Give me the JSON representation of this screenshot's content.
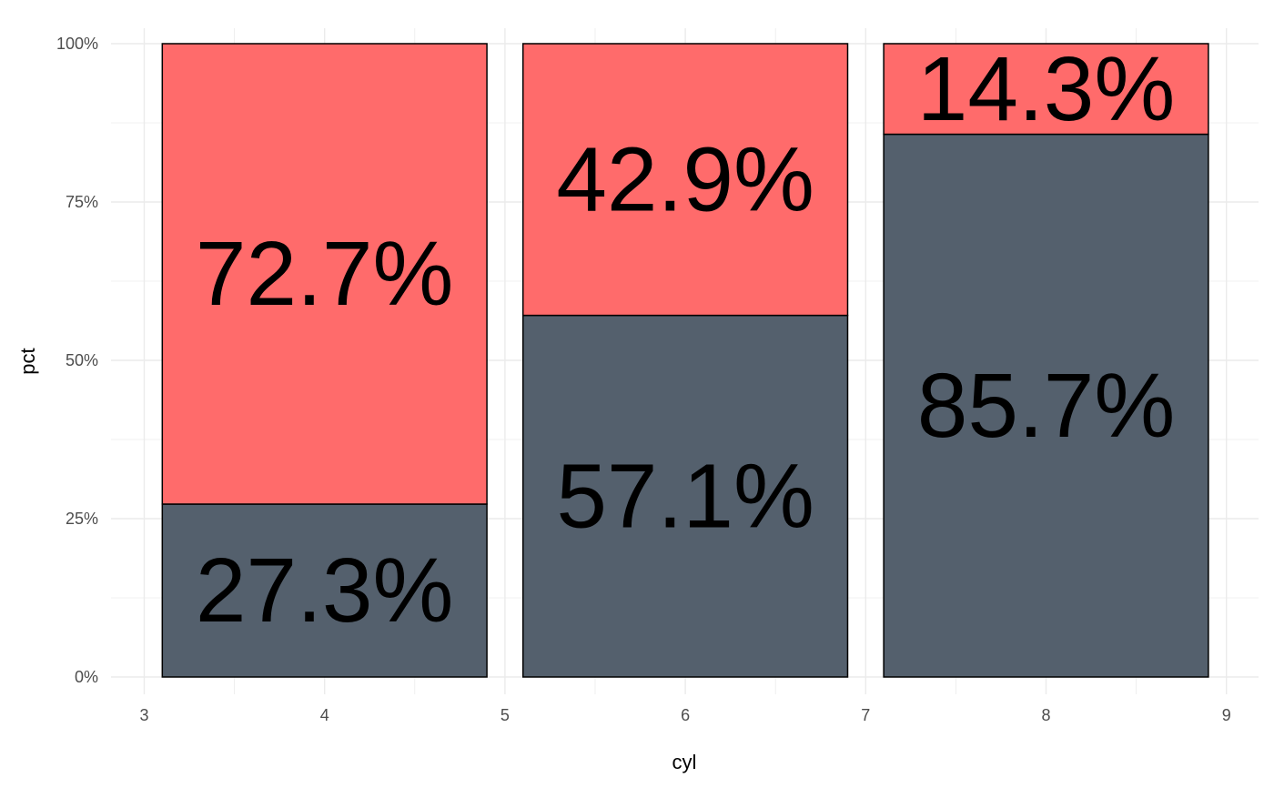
{
  "chart_data": {
    "type": "bar",
    "stacked": true,
    "percent_scale": true,
    "xlabel": "cyl",
    "ylabel": "pct",
    "xlim": [
      3,
      9
    ],
    "ylim": [
      0,
      1
    ],
    "x_ticks": [
      "3",
      "4",
      "5",
      "6",
      "7",
      "8",
      "9"
    ],
    "y_ticks": [
      "0%",
      "25%",
      "50%",
      "75%",
      "100%"
    ],
    "grid": true,
    "bars": [
      {
        "x": 4,
        "segments": [
          {
            "series": "bottom",
            "value": 0.273,
            "label": "27.3%"
          },
          {
            "series": "top",
            "value": 0.727,
            "label": "72.7%"
          }
        ]
      },
      {
        "x": 6,
        "segments": [
          {
            "series": "bottom",
            "value": 0.571,
            "label": "57.1%"
          },
          {
            "series": "top",
            "value": 0.429,
            "label": "42.9%"
          }
        ]
      },
      {
        "x": 8,
        "segments": [
          {
            "series": "bottom",
            "value": 0.857,
            "label": "85.7%"
          },
          {
            "series": "top",
            "value": 0.143,
            "label": "14.3%"
          }
        ]
      }
    ],
    "colors": {
      "bottom": "#54606d",
      "top": "#ff6b6b",
      "outline": "#000000",
      "grid": "#ebebeb"
    }
  }
}
